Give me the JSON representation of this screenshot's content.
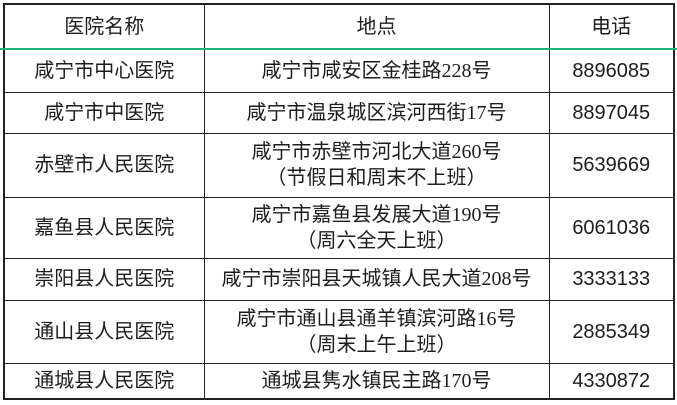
{
  "accent": {
    "header_underline_color": "#1bb377",
    "grid_border_color": "#222222"
  },
  "table": {
    "columns": [
      {
        "key": "name",
        "label": "医院名称"
      },
      {
        "key": "address",
        "label": "地点"
      },
      {
        "key": "phone",
        "label": "电话"
      }
    ],
    "rows": [
      {
        "name": "咸宁市中心医院",
        "address_lines": [
          "咸宁市咸安区金桂路228号"
        ],
        "phone": "8896085"
      },
      {
        "name": "咸宁市中医院",
        "address_lines": [
          "咸宁市温泉城区滨河西街17号"
        ],
        "phone": "8897045"
      },
      {
        "name": "赤壁市人民医院",
        "address_lines": [
          "咸宁市赤壁市河北大道260号",
          "（节假日和周末不上班）"
        ],
        "phone": "5639669"
      },
      {
        "name": "嘉鱼县人民医院",
        "address_lines": [
          "咸宁市嘉鱼县发展大道190号",
          "（周六全天上班）"
        ],
        "phone": "6061036"
      },
      {
        "name": "崇阳县人民医院",
        "address_lines": [
          "咸宁市崇阳县天城镇人民大道208号"
        ],
        "phone": "3333133"
      },
      {
        "name": "通山县人民医院",
        "address_lines": [
          "咸宁市通山县通羊镇滨河路16号",
          "（周末上午上班）"
        ],
        "phone": "2885349"
      },
      {
        "name": "通城县人民医院",
        "address_lines": [
          "通城县隽水镇民主路170号"
        ],
        "phone": "4330872"
      }
    ]
  }
}
